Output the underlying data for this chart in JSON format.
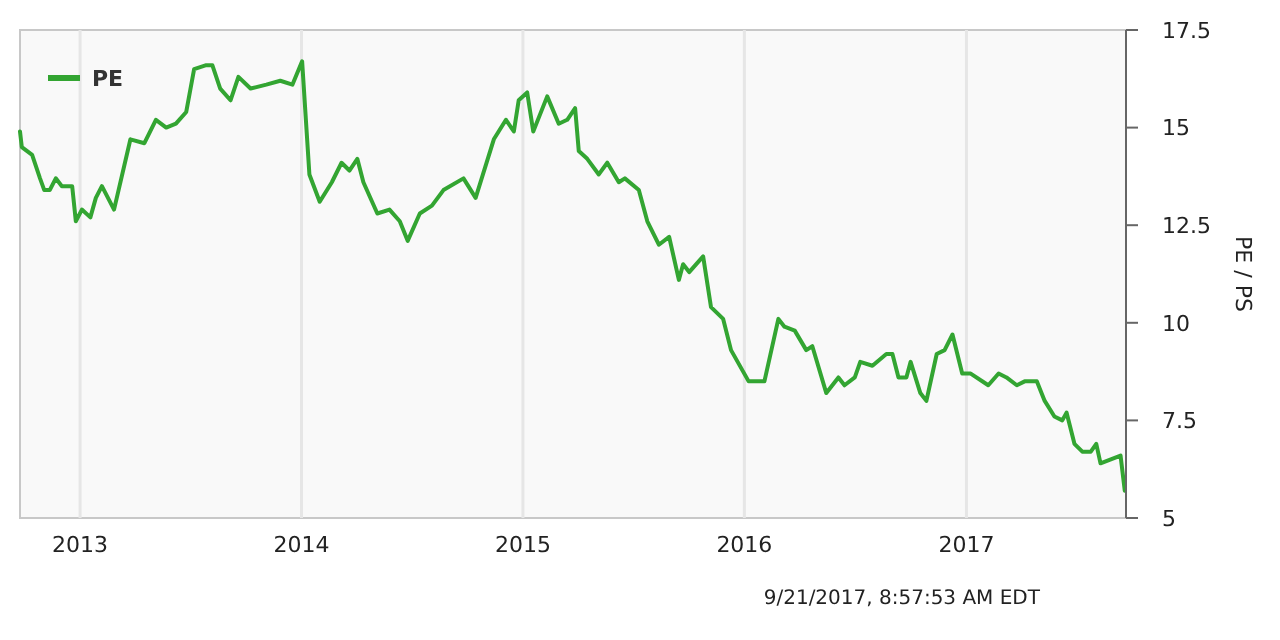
{
  "chart_data": {
    "type": "line",
    "ylabel": "PE / PS",
    "legend": "top left",
    "grid": "x",
    "xlim": [
      "2012-09-24",
      "2017-09-21"
    ],
    "ylim": [
      5,
      17.5
    ],
    "xticks": [
      {
        "value": "2013-01-01",
        "label": "2013"
      },
      {
        "value": "2014-01-01",
        "label": "2014"
      },
      {
        "value": "2015-01-01",
        "label": "2015"
      },
      {
        "value": "2016-01-01",
        "label": "2016"
      },
      {
        "value": "2017-01-01",
        "label": "2017"
      }
    ],
    "yticks": [
      5,
      7.5,
      10,
      12.5,
      15,
      17.5
    ],
    "annotations": [
      "9/21/2017, 8:57:53 AM EDT"
    ],
    "x": [
      "2012-09-24",
      "2012-09-27",
      "2012-10-14",
      "2012-10-27",
      "2012-11-03",
      "2012-11-12",
      "2012-11-22",
      "2012-12-02",
      "2012-12-19",
      "2012-12-25",
      "2013-01-04",
      "2013-01-18",
      "2013-01-27",
      "2013-02-06",
      "2013-02-26",
      "2013-03-25",
      "2013-04-17",
      "2013-05-06",
      "2013-05-23",
      "2013-06-08",
      "2013-06-25",
      "2013-07-08",
      "2013-07-28",
      "2013-08-07",
      "2013-08-20",
      "2013-09-06",
      "2013-09-19",
      "2013-10-09",
      "2013-11-04",
      "2013-11-27",
      "2013-12-17",
      "2014-01-02",
      "2014-01-14",
      "2014-01-31",
      "2014-02-20",
      "2014-03-08",
      "2014-03-21",
      "2014-04-03",
      "2014-04-13",
      "2014-05-06",
      "2014-05-26",
      "2014-06-12",
      "2014-06-25",
      "2014-07-15",
      "2014-08-04",
      "2014-08-23",
      "2014-09-25",
      "2014-10-15",
      "2014-11-14",
      "2014-12-04",
      "2014-12-17",
      "2014-12-25",
      "2015-01-08",
      "2015-01-18",
      "2015-02-10",
      "2015-03-01",
      "2015-03-15",
      "2015-03-28",
      "2015-04-03",
      "2015-04-17",
      "2015-05-06",
      "2015-05-20",
      "2015-06-08",
      "2015-06-18",
      "2015-07-11",
      "2015-07-25",
      "2015-08-13",
      "2015-08-30",
      "2015-09-15",
      "2015-09-22",
      "2015-10-02",
      "2015-10-25",
      "2015-11-07",
      "2015-11-27",
      "2015-12-10",
      "2016-01-08",
      "2016-02-03",
      "2016-02-26",
      "2016-03-07",
      "2016-03-24",
      "2016-04-12",
      "2016-04-22",
      "2016-05-15",
      "2016-06-04",
      "2016-06-14",
      "2016-07-01",
      "2016-07-10",
      "2016-07-30",
      "2016-08-22",
      "2016-09-01",
      "2016-09-11",
      "2016-09-24",
      "2016-10-01",
      "2016-10-17",
      "2016-10-27",
      "2016-11-13",
      "2016-11-26",
      "2016-12-09",
      "2016-12-25",
      "2017-01-08",
      "2017-02-06",
      "2017-02-23",
      "2017-03-08",
      "2017-03-25",
      "2017-04-07",
      "2017-04-27",
      "2017-05-10",
      "2017-05-26",
      "2017-06-08",
      "2017-06-15",
      "2017-06-28",
      "2017-07-11",
      "2017-07-25",
      "2017-08-03",
      "2017-08-10",
      "2017-08-27",
      "2017-09-12",
      "2017-09-19"
    ],
    "series": [
      {
        "name": "PE",
        "color": "#33a532",
        "values": [
          14.9,
          14.5,
          14.3,
          13.7,
          13.4,
          13.4,
          13.7,
          13.5,
          13.5,
          12.6,
          12.9,
          12.7,
          13.2,
          13.5,
          12.9,
          14.7,
          14.6,
          15.2,
          15.0,
          15.1,
          15.4,
          16.5,
          16.6,
          16.6,
          16.0,
          15.7,
          16.3,
          16.0,
          16.1,
          16.2,
          16.1,
          16.7,
          13.8,
          13.1,
          13.6,
          14.1,
          13.9,
          14.2,
          13.6,
          12.8,
          12.9,
          12.6,
          12.1,
          12.8,
          13.0,
          13.4,
          13.7,
          13.2,
          14.7,
          15.2,
          14.9,
          15.7,
          15.9,
          14.9,
          15.8,
          15.1,
          15.2,
          15.5,
          14.4,
          14.2,
          13.8,
          14.1,
          13.6,
          13.7,
          13.4,
          12.6,
          12.0,
          12.2,
          11.1,
          11.5,
          11.3,
          11.7,
          10.4,
          10.1,
          9.3,
          8.5,
          8.5,
          10.1,
          9.9,
          9.8,
          9.3,
          9.4,
          8.2,
          8.6,
          8.4,
          8.6,
          9.0,
          8.9,
          9.2,
          9.2,
          8.6,
          8.6,
          9.0,
          8.2,
          8.0,
          9.2,
          9.3,
          9.7,
          8.7,
          8.7,
          8.4,
          8.7,
          8.6,
          8.4,
          8.5,
          8.5,
          8.0,
          7.6,
          7.5,
          7.7,
          6.9,
          6.7,
          6.7,
          6.9,
          6.4,
          6.5,
          6.6,
          5.7
        ]
      }
    ]
  }
}
